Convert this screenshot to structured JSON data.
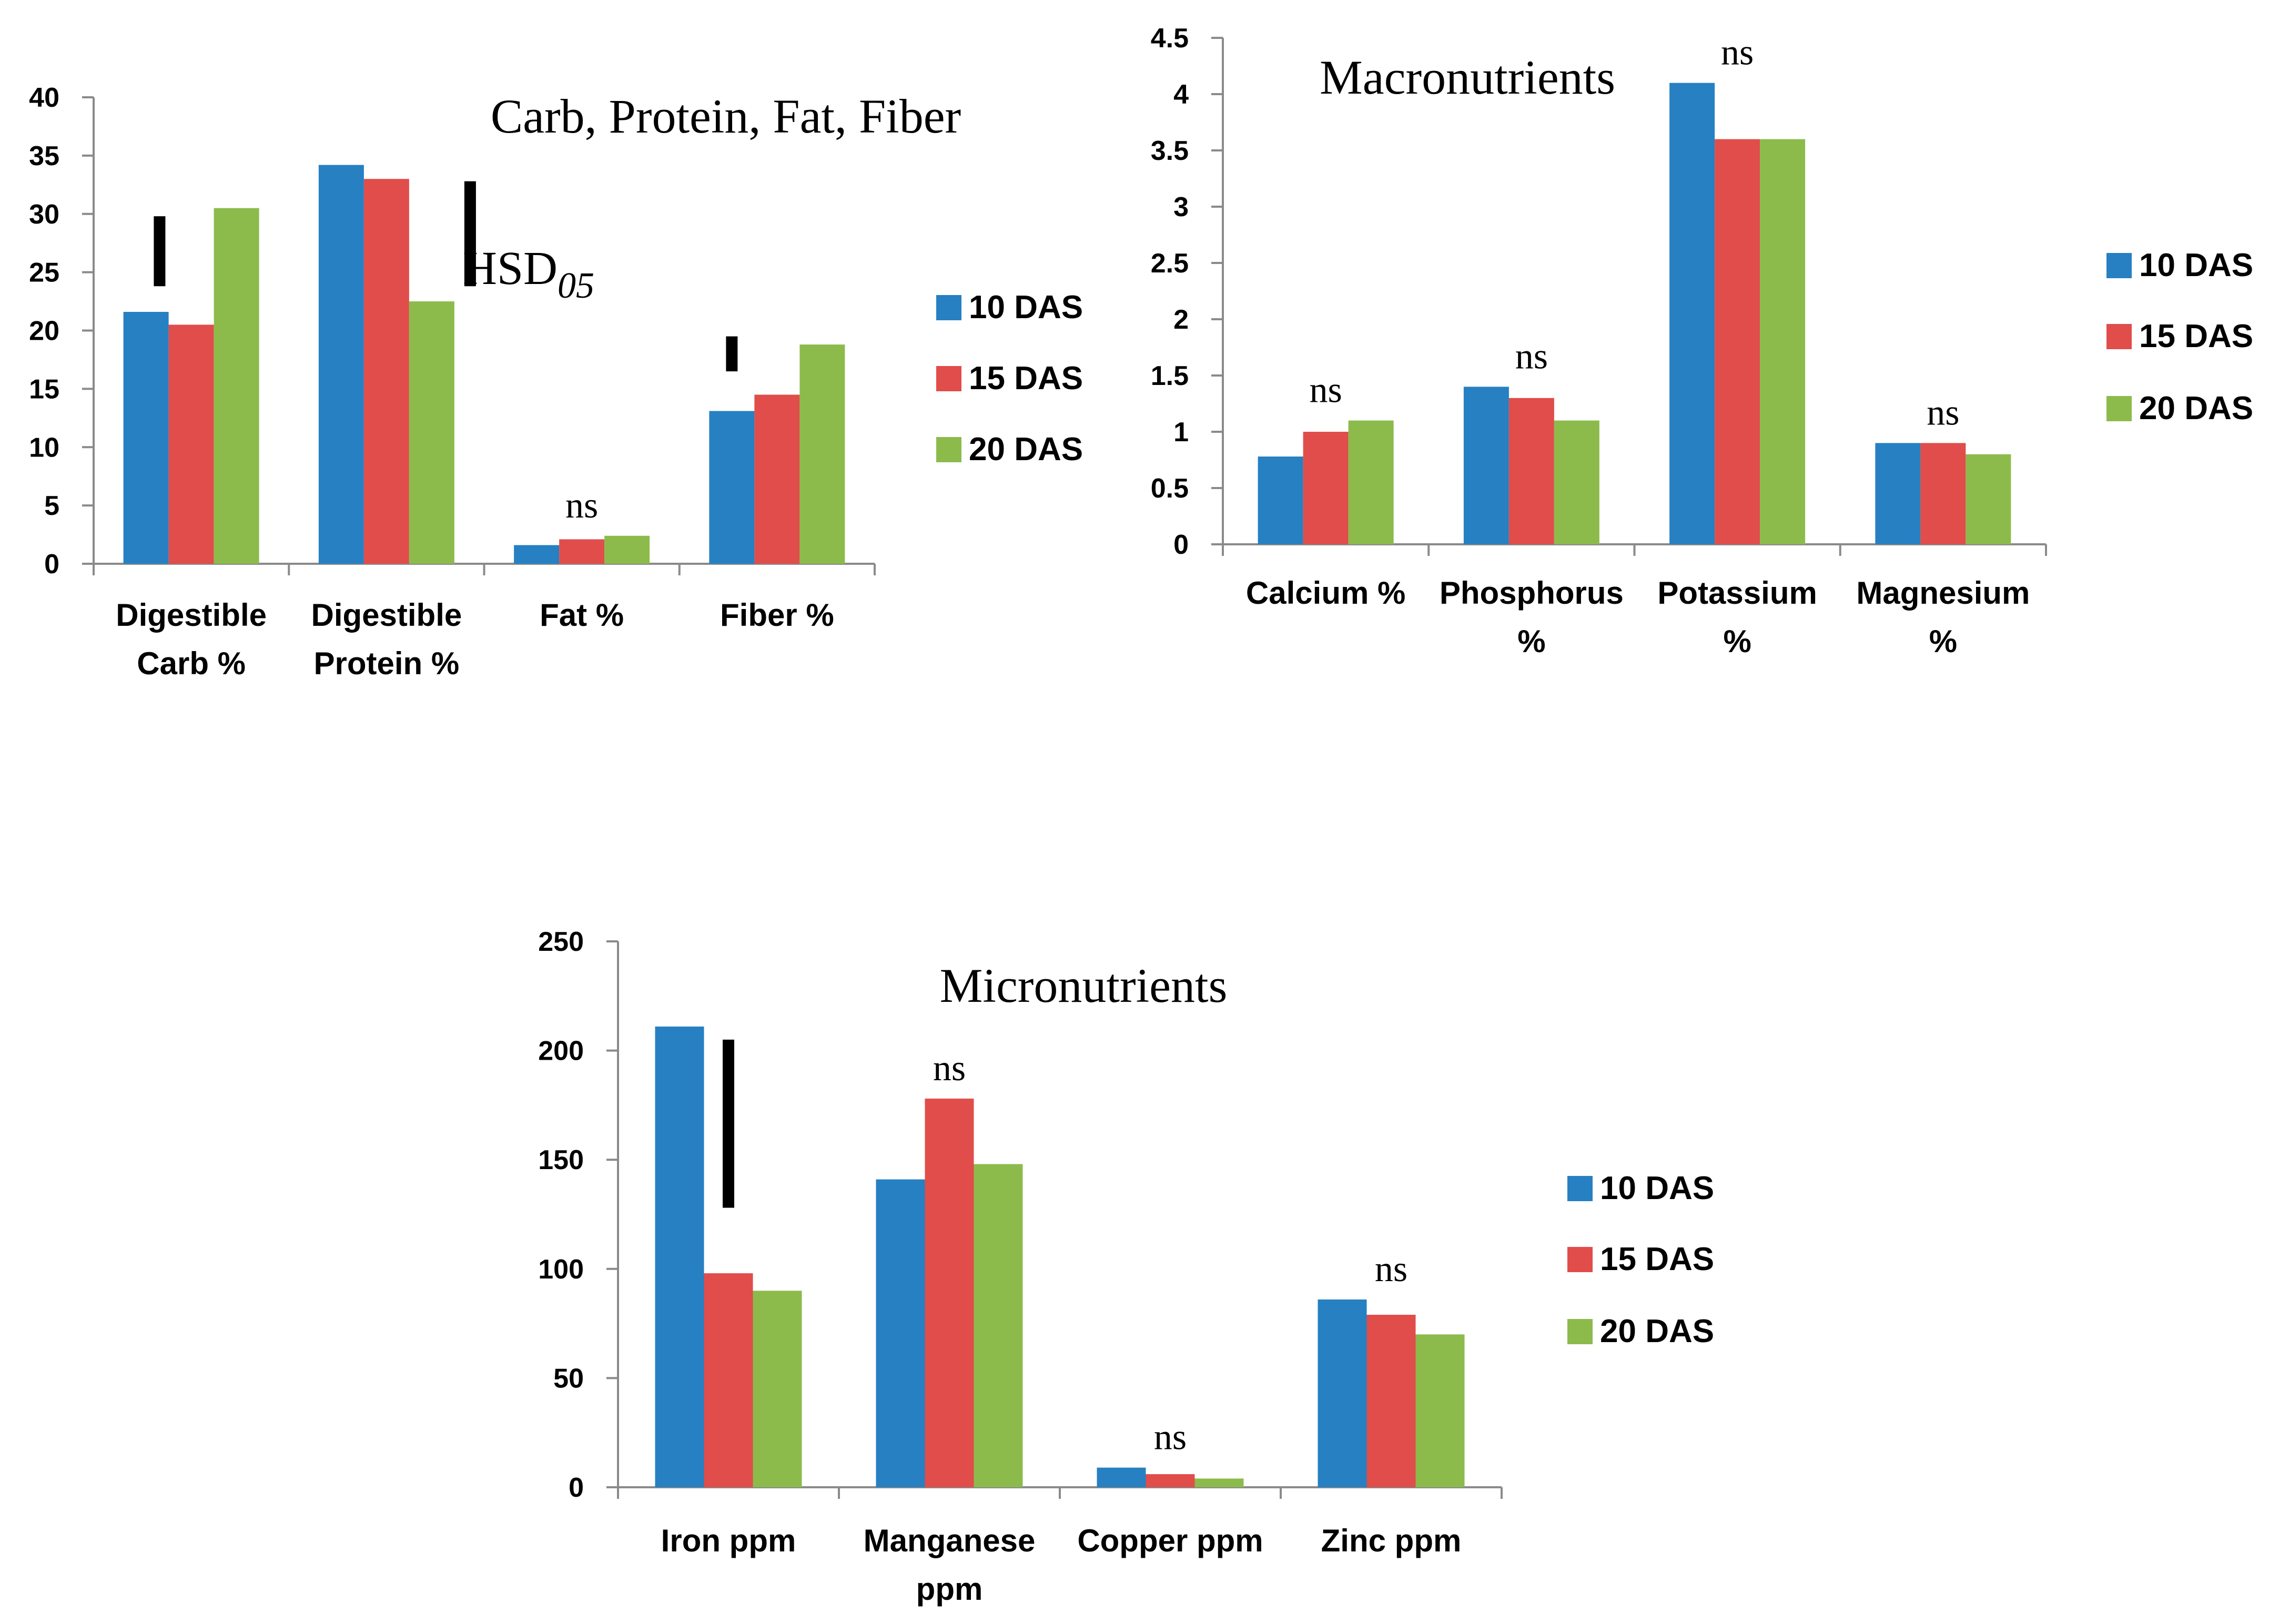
{
  "chart_data": [
    {
      "type": "bar",
      "title": "Carb, Protein, Fat, Fiber",
      "categories": [
        [
          "Digestible",
          "Carb %"
        ],
        [
          "Digestible",
          "Protein %"
        ],
        [
          "Fat %"
        ],
        [
          "Fiber %"
        ]
      ],
      "series": [
        {
          "name": "10 DAS",
          "values": [
            21.6,
            34.2,
            1.6,
            13.1
          ]
        },
        {
          "name": "15 DAS",
          "values": [
            20.5,
            33.0,
            2.1,
            14.5
          ]
        },
        {
          "name": "20 DAS",
          "values": [
            30.5,
            22.5,
            2.4,
            18.8
          ]
        }
      ],
      "ylim": [
        0,
        40
      ],
      "yticks": [
        0,
        5,
        10,
        15,
        20,
        25,
        30,
        35,
        40
      ],
      "legend": "right",
      "hsd_label": "HSD",
      "hsd_sub": "05",
      "hsd_bars": [
        {
          "category": 0,
          "lo": 23.8,
          "hi": 29.8
        },
        {
          "category": 1,
          "lo": 23.8,
          "hi": 32.8
        },
        {
          "category": 3,
          "lo": 16.5,
          "hi": 19.5
        }
      ],
      "annotations": [
        {
          "category": 2,
          "text": "ns"
        }
      ]
    },
    {
      "type": "bar",
      "title": "Macronutrients",
      "categories": [
        [
          "Calcium %"
        ],
        [
          "Phosphorus",
          "%"
        ],
        [
          "Potassium",
          "%"
        ],
        [
          "Magnesium",
          "%"
        ]
      ],
      "series": [
        {
          "name": "10 DAS",
          "values": [
            0.78,
            1.4,
            4.1,
            0.9
          ]
        },
        {
          "name": "15 DAS",
          "values": [
            1.0,
            1.3,
            3.6,
            0.9
          ]
        },
        {
          "name": "20 DAS",
          "values": [
            1.1,
            1.1,
            3.6,
            0.8
          ]
        }
      ],
      "ylim": [
        0,
        4.5
      ],
      "yticks": [
        "0",
        "0.5",
        "1",
        "1.5",
        "2",
        "2.5",
        "3",
        "3.5",
        "4",
        "4.5"
      ],
      "legend": "right",
      "annotations": [
        {
          "category": 0,
          "text": "ns"
        },
        {
          "category": 1,
          "text": "ns"
        },
        {
          "category": 2,
          "text": "ns"
        },
        {
          "category": 3,
          "text": "ns"
        }
      ]
    },
    {
      "type": "bar",
      "title": "Micronutrients",
      "categories": [
        [
          "Iron ppm"
        ],
        [
          "Manganese",
          "ppm"
        ],
        [
          "Copper ppm"
        ],
        [
          "Zinc ppm"
        ]
      ],
      "series": [
        {
          "name": "10 DAS",
          "values": [
            211,
            141,
            9,
            86
          ]
        },
        {
          "name": "15 DAS",
          "values": [
            98,
            178,
            6,
            79
          ]
        },
        {
          "name": "20 DAS",
          "values": [
            90,
            148,
            4,
            70
          ]
        }
      ],
      "ylim": [
        0,
        250
      ],
      "yticks": [
        0,
        50,
        100,
        150,
        200,
        250
      ],
      "legend": "right",
      "hsd_bars": [
        {
          "category": 0,
          "lo": 128,
          "hi": 205
        }
      ],
      "annotations": [
        {
          "category": 1,
          "text": "ns"
        },
        {
          "category": 2,
          "text": "ns"
        },
        {
          "category": 3,
          "text": "ns"
        }
      ]
    }
  ],
  "colors": {
    "series": [
      "#2680c2",
      "#e04d4a",
      "#8cbb4c"
    ],
    "axis": "#8a8a8a"
  }
}
